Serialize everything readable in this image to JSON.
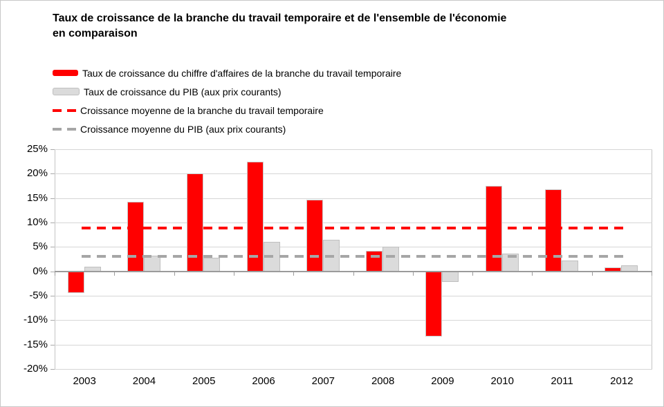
{
  "title": "Taux de croissance de la branche du travail temporaire et de l'ensemble de l'économie en comparaison",
  "legend": {
    "items": [
      {
        "label": "Taux de croissance du chiffre d'affaires de la branche du travail temporaire",
        "swatch": "bar-red"
      },
      {
        "label": "Taux de croissance du PIB (aux prix courants)",
        "swatch": "bar-gray"
      },
      {
        "label": "Croissance moyenne de la branche du travail temporaire",
        "swatch": "dash-red"
      },
      {
        "label": "Croissance moyenne du PIB (aux prix courants)",
        "swatch": "dash-gray"
      }
    ]
  },
  "chart_data": {
    "type": "bar",
    "title": "Taux de croissance de la branche du travail temporaire et de l'ensemble de l'économie en comparaison",
    "categories": [
      "2003",
      "2004",
      "2005",
      "2006",
      "2007",
      "2008",
      "2009",
      "2010",
      "2011",
      "2012"
    ],
    "series": [
      {
        "name": "Taux de croissance du chiffre d'affaires de la branche du travail temporaire",
        "color": "#FF0000",
        "values": [
          -4.4,
          14.2,
          20.0,
          22.4,
          14.6,
          4.2,
          -13.4,
          17.5,
          16.8,
          0.8
        ]
      },
      {
        "name": "Taux de croissance du PIB (aux prix courants)",
        "color": "#DBDBDB",
        "values": [
          1.0,
          3.2,
          2.8,
          6.0,
          6.5,
          5.0,
          -2.2,
          3.6,
          2.2,
          1.2
        ]
      }
    ],
    "reference_lines": [
      {
        "name": "Croissance moyenne de la branche du travail temporaire",
        "value": 8.8,
        "color": "#FF0000",
        "style": "dashed"
      },
      {
        "name": "Croissance moyenne du PIB (aux prix courants)",
        "value": 3.0,
        "color": "#A6A6A6",
        "style": "dashed"
      }
    ],
    "xlabel": "",
    "ylabel": "",
    "ylim": [
      -20,
      25
    ],
    "ytick_step": 5,
    "ytick_labels": [
      "25%",
      "20%",
      "15%",
      "10%",
      "5%",
      "0%",
      "-5%",
      "-10%",
      "-15%",
      "-20%"
    ],
    "ytick_format": "percent",
    "grid": true,
    "legend_position": "top-left"
  },
  "colors": {
    "bar_red": "#FF0000",
    "bar_red_border": "#C9C9C9",
    "bar_gray_fill": "#DBDBDB",
    "bar_gray_border": "#BFBFBF",
    "dash_red": "#FF0000",
    "dash_gray": "#A6A6A6",
    "gridline": "#D6D6D6",
    "zero_line": "#9B9B9B",
    "tick": "#A9A9A9",
    "frame": "#C4C4C4",
    "text": "#000000"
  }
}
